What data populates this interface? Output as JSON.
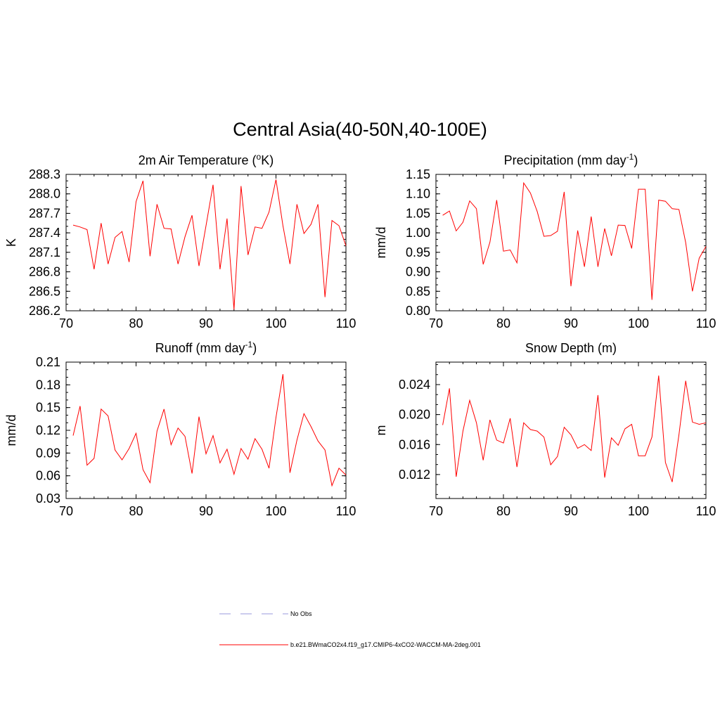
{
  "figure_title": "Central Asia(40-50N,40-100E)",
  "legend": {
    "entries": [
      {
        "label": "No Obs",
        "color": "#9999dd",
        "style": "dashed"
      },
      {
        "label": "b.e21.BWmaCO2x4.f19_g17.CMIP6-4xCO2-WACCM-MA-2deg.001",
        "color": "#ff0000",
        "style": "solid"
      }
    ]
  },
  "chart_data": [
    {
      "type": "line",
      "title": "2m Air Temperature (",
      "title_sup": "o",
      "title_after": "K)",
      "ylabel": "K",
      "xlabel": "",
      "xlim": [
        70,
        110
      ],
      "ylim": [
        286.2,
        288.3
      ],
      "xticks": [
        "70",
        "80",
        "90",
        "100",
        "110"
      ],
      "yticks": [
        "286.2",
        "286.5",
        "286.8",
        "287.1",
        "287.4",
        "287.7",
        "288.0",
        "288.3"
      ],
      "series": [
        {
          "name": "b.e21.BWmaCO2x4.f19_g17.CMIP6-4xCO2-WACCM-MA-2deg.001",
          "color": "#ff0000",
          "x": [
            71,
            72,
            73,
            74,
            75,
            76,
            77,
            78,
            79,
            80,
            81,
            82,
            83,
            84,
            85,
            86,
            87,
            88,
            89,
            90,
            91,
            92,
            93,
            94,
            95,
            96,
            97,
            98,
            99,
            100,
            101,
            102,
            103,
            104,
            105,
            106,
            107,
            108,
            109,
            110
          ],
          "y": [
            287.52,
            287.49,
            287.45,
            286.84,
            287.55,
            286.92,
            287.33,
            287.42,
            286.95,
            287.88,
            288.2,
            287.04,
            287.84,
            287.47,
            287.46,
            286.92,
            287.34,
            287.67,
            286.89,
            287.51,
            288.14,
            286.84,
            287.62,
            286.22,
            288.12,
            287.06,
            287.49,
            287.47,
            287.72,
            288.22,
            287.51,
            286.92,
            287.84,
            287.39,
            287.53,
            287.84,
            286.41,
            287.59,
            287.51,
            287.2
          ]
        }
      ]
    },
    {
      "type": "line",
      "title": "Precipitation (mm day",
      "title_sup": "-1",
      "title_after": ")",
      "ylabel": "mm/d",
      "xlabel": "",
      "xlim": [
        70,
        110
      ],
      "ylim": [
        0.8,
        1.15
      ],
      "xticks": [
        "70",
        "80",
        "90",
        "100",
        "110"
      ],
      "yticks": [
        "0.80",
        "0.85",
        "0.90",
        "0.95",
        "1.00",
        "1.05",
        "1.10",
        "1.15"
      ],
      "series": [
        {
          "name": "b.e21.BWmaCO2x4.f19_g17.CMIP6-4xCO2-WACCM-MA-2deg.001",
          "color": "#ff0000",
          "x": [
            71,
            72,
            73,
            74,
            75,
            76,
            77,
            78,
            79,
            80,
            81,
            82,
            83,
            84,
            85,
            86,
            87,
            88,
            89,
            90,
            91,
            92,
            93,
            94,
            95,
            96,
            97,
            98,
            99,
            100,
            101,
            102,
            103,
            104,
            105,
            106,
            107,
            108,
            109,
            110
          ],
          "y": [
            1.045,
            1.056,
            1.005,
            1.027,
            1.082,
            1.062,
            0.919,
            0.976,
            1.084,
            0.953,
            0.956,
            0.923,
            1.128,
            1.102,
            1.055,
            0.991,
            0.993,
            1.004,
            1.105,
            0.863,
            1.006,
            0.913,
            1.042,
            0.913,
            1.011,
            0.941,
            1.02,
            1.019,
            0.96,
            1.112,
            1.112,
            0.828,
            1.084,
            1.081,
            1.062,
            1.06,
            0.975,
            0.85,
            0.935,
            0.965
          ]
        }
      ]
    },
    {
      "type": "line",
      "title": "Runoff (mm day",
      "title_sup": "-1",
      "title_after": ")",
      "ylabel": "mm/d",
      "xlabel": "",
      "xlim": [
        70,
        110
      ],
      "ylim": [
        0.03,
        0.21
      ],
      "xticks": [
        "70",
        "80",
        "90",
        "100",
        "110"
      ],
      "yticks": [
        "0.03",
        "0.06",
        "0.09",
        "0.12",
        "0.15",
        "0.18",
        "0.21"
      ],
      "series": [
        {
          "name": "b.e21.BWmaCO2x4.f19_g17.CMIP6-4xCO2-WACCM-MA-2deg.001",
          "color": "#ff0000",
          "x": [
            71,
            72,
            73,
            74,
            75,
            76,
            77,
            78,
            79,
            80,
            81,
            82,
            83,
            84,
            85,
            86,
            87,
            88,
            89,
            90,
            91,
            92,
            93,
            94,
            95,
            96,
            97,
            98,
            99,
            100,
            101,
            102,
            103,
            104,
            105,
            106,
            107,
            108,
            109,
            110
          ],
          "y": [
            0.113,
            0.152,
            0.074,
            0.083,
            0.148,
            0.139,
            0.094,
            0.081,
            0.096,
            0.116,
            0.068,
            0.051,
            0.119,
            0.148,
            0.101,
            0.123,
            0.112,
            0.063,
            0.138,
            0.089,
            0.113,
            0.077,
            0.095,
            0.062,
            0.096,
            0.082,
            0.109,
            0.095,
            0.07,
            0.137,
            0.194,
            0.064,
            0.107,
            0.142,
            0.125,
            0.106,
            0.094,
            0.047,
            0.07,
            0.061
          ]
        }
      ]
    },
    {
      "type": "line",
      "title": "Snow Depth (m)",
      "title_sup": "",
      "title_after": "",
      "ylabel": "m",
      "xlabel": "",
      "xlim": [
        70,
        110
      ],
      "ylim": [
        0.0088,
        0.027
      ],
      "xticks": [
        "70",
        "80",
        "90",
        "100",
        "110"
      ],
      "yticks": [
        "0.012",
        "0.016",
        "0.020",
        "0.024"
      ],
      "series": [
        {
          "name": "b.e21.BWmaCO2x4.f19_g17.CMIP6-4xCO2-WACCM-MA-2deg.001",
          "color": "#ff0000",
          "x": [
            71,
            72,
            73,
            74,
            75,
            76,
            77,
            78,
            79,
            80,
            81,
            82,
            83,
            84,
            85,
            86,
            87,
            88,
            89,
            90,
            91,
            92,
            93,
            94,
            95,
            96,
            97,
            98,
            99,
            100,
            101,
            102,
            103,
            104,
            105,
            106,
            107,
            108,
            109,
            110
          ],
          "y": [
            0.0186,
            0.0235,
            0.0117,
            0.0178,
            0.0219,
            0.0189,
            0.0139,
            0.0193,
            0.0166,
            0.0162,
            0.0195,
            0.013,
            0.0189,
            0.018,
            0.0178,
            0.017,
            0.0133,
            0.0144,
            0.0183,
            0.0173,
            0.0155,
            0.016,
            0.0152,
            0.0226,
            0.0116,
            0.0169,
            0.0159,
            0.0181,
            0.0187,
            0.0145,
            0.0145,
            0.017,
            0.0252,
            0.0136,
            0.011,
            0.0173,
            0.0245,
            0.019,
            0.0187,
            0.0189
          ]
        }
      ]
    }
  ]
}
